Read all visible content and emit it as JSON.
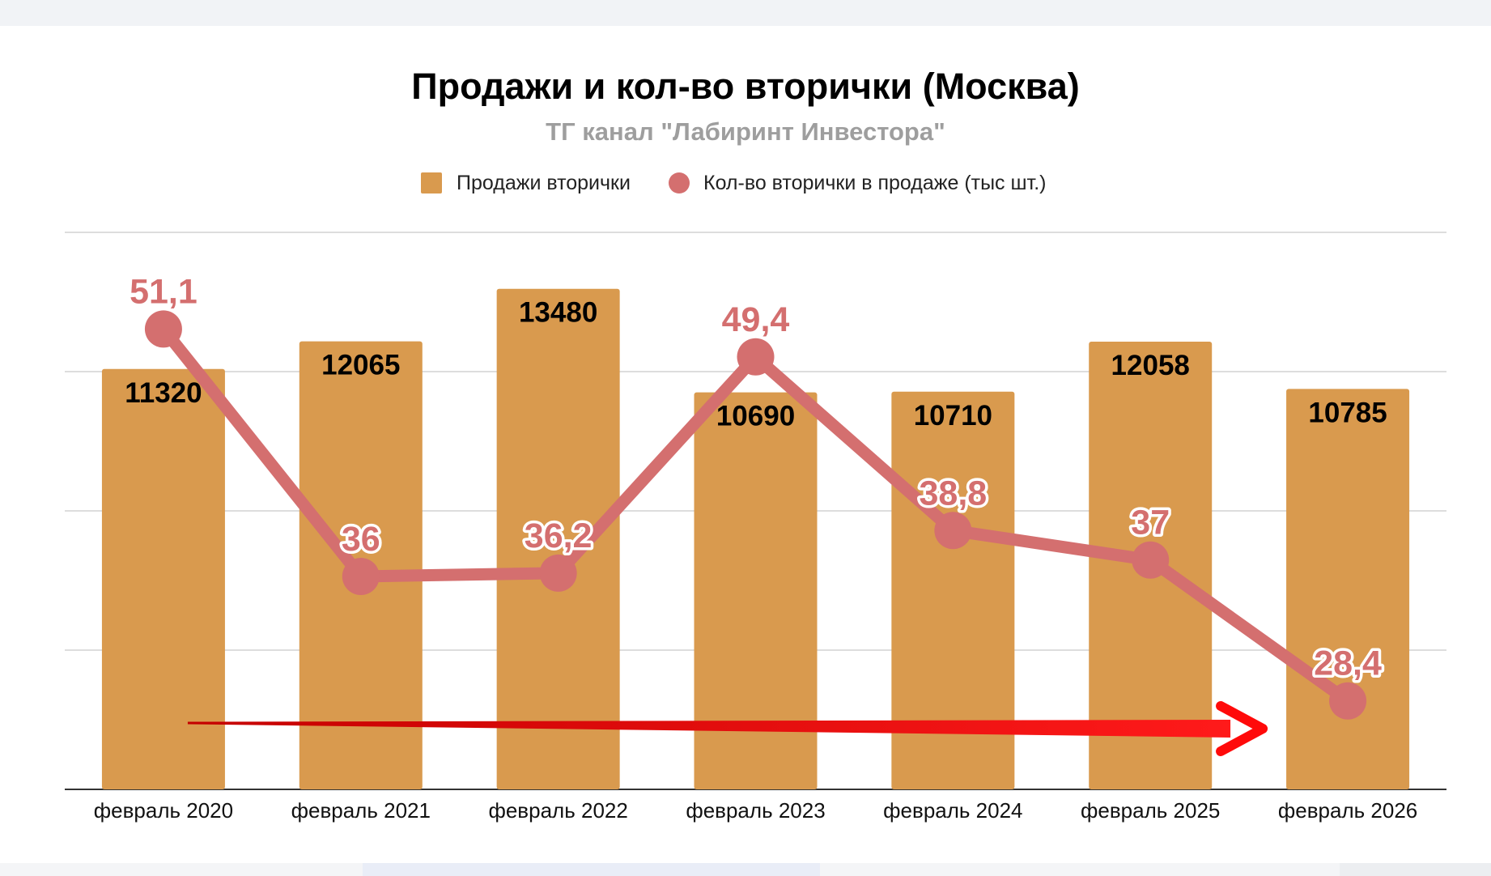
{
  "chart_data": {
    "type": "bar",
    "title": "Продажи и кол-во вторички (Москва)",
    "subtitle": "ТГ канал \"Лабиринт Инвестора\"",
    "categories": [
      "февраль 2020",
      "февраль 2021",
      "февраль 2022",
      "февраль 2023",
      "февраль 2024",
      "февраль 2025",
      "февраль 2026"
    ],
    "series": [
      {
        "name": "Продажи вторички",
        "type": "bar",
        "color": "#d99a4e",
        "values": [
          11320,
          12065,
          13480,
          10690,
          10710,
          12058,
          10785
        ],
        "labels": [
          "11320",
          "12065",
          "13480",
          "10690",
          "10710",
          "12058",
          "10785"
        ],
        "ylim": [
          0,
          15000
        ]
      },
      {
        "name": "Кол-во вторички в продаже (тыс шт.)",
        "type": "line",
        "color": "#d46f6f",
        "values": [
          51.1,
          36,
          36.2,
          49.4,
          38.8,
          37,
          28.4
        ],
        "labels": [
          "51,1",
          "36",
          "36,2",
          "49,4",
          "38,8",
          "37",
          "28,4"
        ],
        "ylim": [
          23,
          57
        ]
      }
    ],
    "legend": "top",
    "grid": true,
    "annotation": "red-arrow-right"
  }
}
